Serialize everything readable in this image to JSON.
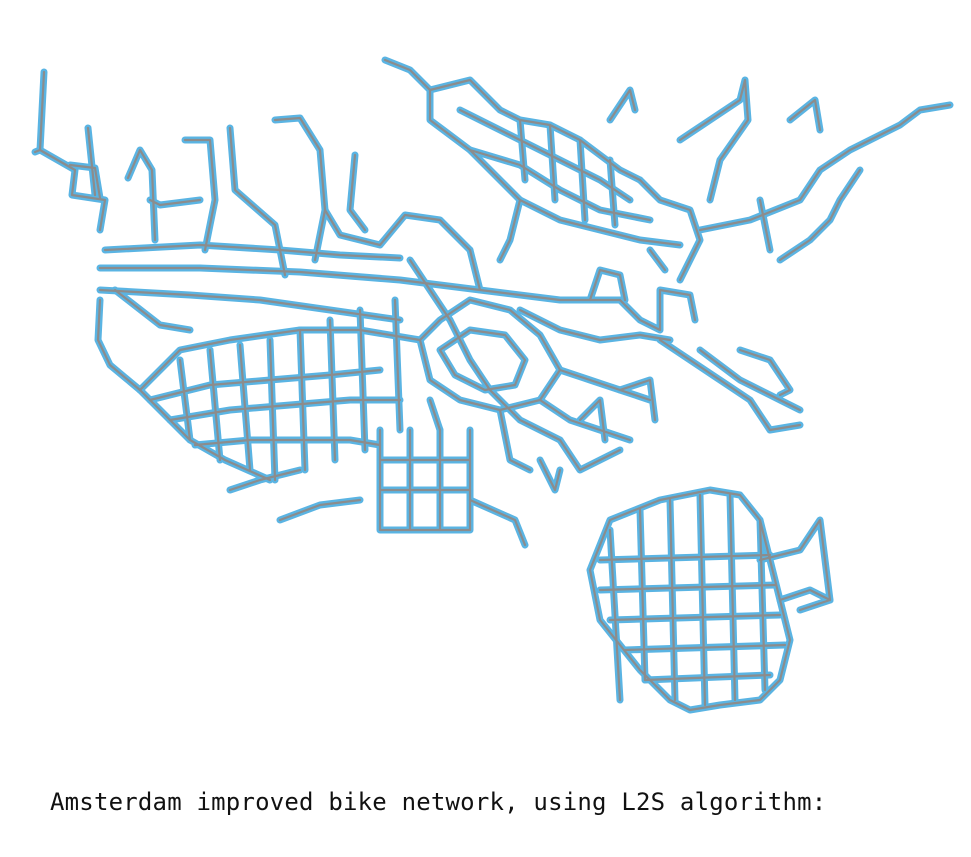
{
  "caption": "Amsterdam improved bike network, using L2S algorithm:",
  "map": {
    "node_color": "#5ab4e3",
    "edge_color": "#8c8c8c",
    "background": "#ffffff"
  }
}
